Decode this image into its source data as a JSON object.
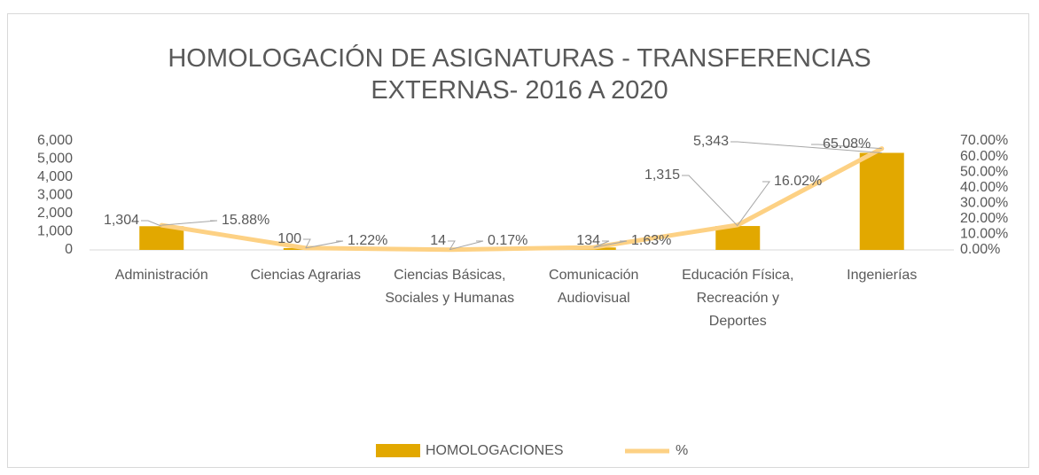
{
  "chart_data": {
    "type": "bar+line",
    "title": "HOMOLOGACIÓN DE ASIGNATURAS - TRANSFERENCIAS EXTERNAS- 2016 A 2020",
    "categories": [
      "Administración",
      "Ciencias Agrarias",
      "Ciencias Básicas, Sociales y Humanas",
      "Comunicación Audiovisual",
      "Educación Física, Recreación y Deportes",
      "Ingenierías"
    ],
    "series": [
      {
        "name": "HOMOLOGACIONES",
        "type": "bar",
        "color": "#e2a800",
        "values": [
          1304,
          100,
          14,
          134,
          1315,
          5343
        ],
        "value_labels": [
          "1,304",
          "100",
          "14",
          "134",
          "1,315",
          "5,343"
        ]
      },
      {
        "name": "%",
        "type": "line",
        "axis": "y2",
        "color": "#fdd184",
        "values": [
          15.88,
          1.22,
          0.17,
          1.63,
          16.02,
          65.08
        ],
        "value_labels": [
          "15.88%",
          "1.22%",
          "0.17%",
          "1.63%",
          "16.02%",
          "65.08%"
        ]
      }
    ],
    "ylim": [
      0,
      6000
    ],
    "yticks": [
      0,
      {
        "value": 1000,
        "label": "1,000"
      },
      {
        "value": 2000,
        "label": "2,000"
      },
      {
        "value": 3000,
        "label": "3,000"
      },
      {
        "value": 4000,
        "label": "4,000"
      },
      {
        "value": 5000,
        "label": "5,000"
      },
      {
        "value": 6000,
        "label": "6,000"
      }
    ],
    "y2lim": [
      0,
      70
    ],
    "y2ticks": [
      {
        "value": 0,
        "label": "0.00%"
      },
      {
        "value": 10,
        "label": "10.00%"
      },
      {
        "value": 20,
        "label": "20.00%"
      },
      {
        "value": 30,
        "label": "30.00%"
      },
      {
        "value": 40,
        "label": "40.00%"
      },
      {
        "value": 50,
        "label": "50.00%"
      },
      {
        "value": 60,
        "label": "60.00%"
      },
      {
        "value": 70,
        "label": "70.00%"
      }
    ],
    "grid": false,
    "legend": "bottom"
  }
}
